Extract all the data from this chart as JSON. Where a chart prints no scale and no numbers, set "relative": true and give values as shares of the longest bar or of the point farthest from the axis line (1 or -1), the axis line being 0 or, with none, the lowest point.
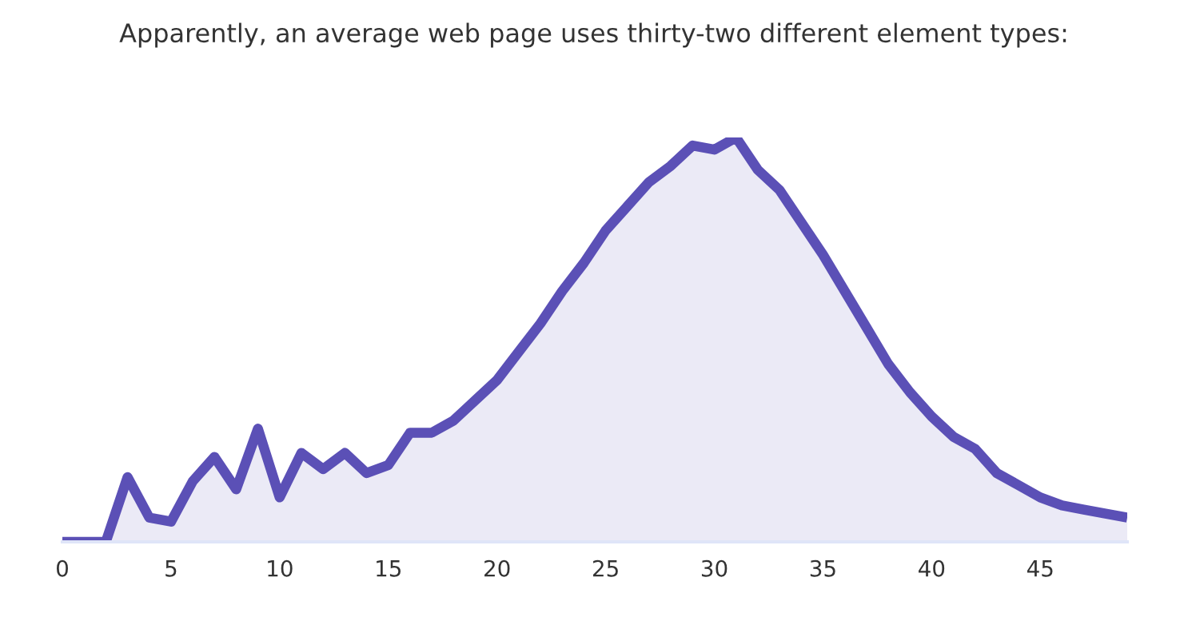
{
  "chart_data": {
    "type": "area",
    "title": "Apparently, an average web page uses thirty-two different element types:",
    "relative": true,
    "x": [
      0,
      1,
      2,
      3,
      4,
      5,
      6,
      7,
      8,
      9,
      10,
      11,
      12,
      13,
      14,
      15,
      16,
      17,
      18,
      19,
      20,
      21,
      22,
      23,
      24,
      25,
      26,
      27,
      28,
      29,
      30,
      31,
      32,
      33,
      34,
      35,
      36,
      37,
      38,
      39,
      40,
      41,
      42,
      43,
      44,
      45,
      46,
      47,
      48,
      49
    ],
    "xlim": [
      0,
      49
    ],
    "xticks": [
      0,
      5,
      10,
      15,
      20,
      25,
      30,
      35,
      40,
      45
    ],
    "grid": false,
    "legend": false,
    "series": [
      {
        "color": "#5b50b6",
        "values": [
          0,
          0,
          0,
          0.16,
          0.06,
          0.05,
          0.15,
          0.21,
          0.13,
          0.28,
          0.11,
          0.22,
          0.18,
          0.22,
          0.17,
          0.19,
          0.27,
          0.27,
          0.3,
          0.35,
          0.4,
          0.47,
          0.54,
          0.62,
          0.69,
          0.77,
          0.83,
          0.89,
          0.93,
          0.98,
          0.97,
          1,
          0.92,
          0.87,
          0.79,
          0.71,
          0.62,
          0.53,
          0.44,
          0.37,
          0.31,
          0.26,
          0.23,
          0.17,
          0.14,
          0.11,
          0.09,
          0.08,
          0.07,
          0.06
        ]
      }
    ]
  }
}
